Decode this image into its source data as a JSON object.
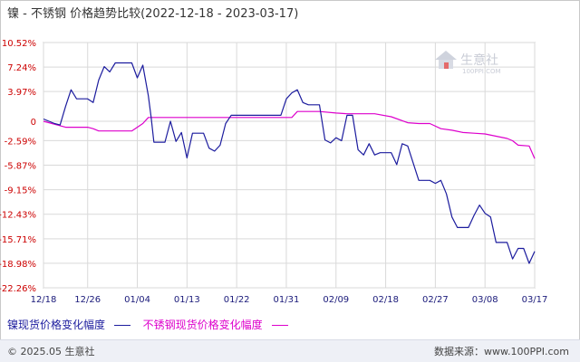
{
  "title": "镍 - 不锈钢 价格趋势比较(2022-12-18 - 2023-03-17)",
  "watermark": {
    "text": "生意社",
    "url": "100PPI.COM"
  },
  "footer": {
    "copyright": "© 2025.05 生意社",
    "source": "数据来源：www.100PPI.com"
  },
  "colors": {
    "series1": "#1c1c9e",
    "series2": "#dd00cc",
    "axis_labels": "#cc0000",
    "x_labels": "#1a1a7a",
    "grid": "#d9d9d9"
  },
  "chart_data": {
    "type": "line",
    "grid": true,
    "legend_placement": "bottom-left",
    "ylim": [
      -22.26,
      10.52
    ],
    "yticks": [
      10.52,
      7.24,
      3.97,
      0,
      -2.59,
      -5.87,
      -9.15,
      -12.43,
      -15.71,
      -18.98,
      -22.26
    ],
    "ytick_labels": [
      "10.52%",
      "7.24%",
      "3.97%",
      "0",
      "-2.59%",
      "-5.87%",
      "-9.15%",
      "-12.43%",
      "-15.71%",
      "-18.98%",
      "-22.26%"
    ],
    "xlim": [
      0,
      89
    ],
    "xticks": [
      0,
      8,
      17,
      26,
      35,
      44,
      53,
      62,
      71,
      80,
      89
    ],
    "xtick_labels": [
      "12/18",
      "12/26",
      "01/04",
      "01/13",
      "01/22",
      "01/31",
      "02/09",
      "02/18",
      "02/27",
      "03/08",
      "03/17"
    ],
    "series": [
      {
        "name": "镍现货价格变化幅度",
        "color": "#1c1c9e",
        "points": [
          [
            0,
            0.3
          ],
          [
            2,
            -0.3
          ],
          [
            3,
            -0.5
          ],
          [
            4,
            2.0
          ],
          [
            5,
            4.2
          ],
          [
            6,
            3.0
          ],
          [
            8,
            3.0
          ],
          [
            9,
            2.5
          ],
          [
            10,
            5.5
          ],
          [
            11,
            7.3
          ],
          [
            12,
            6.6
          ],
          [
            13,
            7.8
          ],
          [
            14,
            7.8
          ],
          [
            16,
            7.8
          ],
          [
            17,
            5.8
          ],
          [
            18,
            7.5
          ],
          [
            19,
            3.4
          ],
          [
            19.5,
            0.5
          ],
          [
            20,
            -2.8
          ],
          [
            22,
            -2.8
          ],
          [
            23,
            0.0
          ],
          [
            24,
            -2.7
          ],
          [
            25,
            -1.5
          ],
          [
            26,
            -4.9
          ],
          [
            27,
            -1.6
          ],
          [
            29,
            -1.6
          ],
          [
            30,
            -3.6
          ],
          [
            31,
            -4.0
          ],
          [
            32,
            -3.2
          ],
          [
            33,
            -0.3
          ],
          [
            34,
            0.8
          ],
          [
            43,
            0.8
          ],
          [
            44,
            3.0
          ],
          [
            45,
            3.8
          ],
          [
            46,
            4.2
          ],
          [
            47,
            2.5
          ],
          [
            48,
            2.2
          ],
          [
            50,
            2.2
          ],
          [
            51,
            -2.5
          ],
          [
            52,
            -2.9
          ],
          [
            53,
            -2.2
          ],
          [
            54,
            -2.6
          ],
          [
            55,
            0.8
          ],
          [
            56,
            0.8
          ],
          [
            57,
            -3.8
          ],
          [
            58,
            -4.5
          ],
          [
            59,
            -3.0
          ],
          [
            60,
            -4.5
          ],
          [
            61,
            -4.2
          ],
          [
            63,
            -4.2
          ],
          [
            64,
            -5.8
          ],
          [
            65,
            -3.0
          ],
          [
            66,
            -3.3
          ],
          [
            68,
            -7.9
          ],
          [
            70,
            -7.9
          ],
          [
            71,
            -8.3
          ],
          [
            72,
            -7.9
          ],
          [
            73,
            -9.7
          ],
          [
            74,
            -12.8
          ],
          [
            75,
            -14.2
          ],
          [
            77,
            -14.2
          ],
          [
            78,
            -12.6
          ],
          [
            79,
            -11.2
          ],
          [
            80,
            -12.3
          ],
          [
            81,
            -12.8
          ],
          [
            82,
            -16.2
          ],
          [
            84,
            -16.2
          ],
          [
            85,
            -18.4
          ],
          [
            86,
            -17.0
          ],
          [
            87,
            -17.0
          ],
          [
            88,
            -19.0
          ],
          [
            89,
            -17.4
          ]
        ]
      },
      {
        "name": "不锈钢现货价格变化幅度",
        "color": "#dd00cc",
        "points": [
          [
            0,
            0
          ],
          [
            4,
            -0.8
          ],
          [
            8,
            -0.8
          ],
          [
            9,
            -1.0
          ],
          [
            10,
            -1.3
          ],
          [
            16,
            -1.3
          ],
          [
            18,
            -0.3
          ],
          [
            19,
            0.5
          ],
          [
            20,
            0.5
          ],
          [
            45,
            0.5
          ],
          [
            46,
            1.3
          ],
          [
            50,
            1.3
          ],
          [
            53,
            1.1
          ],
          [
            55,
            1.0
          ],
          [
            60,
            1.0
          ],
          [
            63,
            0.6
          ],
          [
            66,
            -0.2
          ],
          [
            68,
            -0.3
          ],
          [
            70,
            -0.3
          ],
          [
            72,
            -1.0
          ],
          [
            74,
            -1.2
          ],
          [
            76,
            -1.5
          ],
          [
            78,
            -1.6
          ],
          [
            80,
            -1.7
          ],
          [
            82,
            -2.0
          ],
          [
            84,
            -2.3
          ],
          [
            85,
            -2.6
          ],
          [
            86,
            -3.2
          ],
          [
            88,
            -3.3
          ],
          [
            89,
            -5.0
          ]
        ]
      }
    ]
  }
}
